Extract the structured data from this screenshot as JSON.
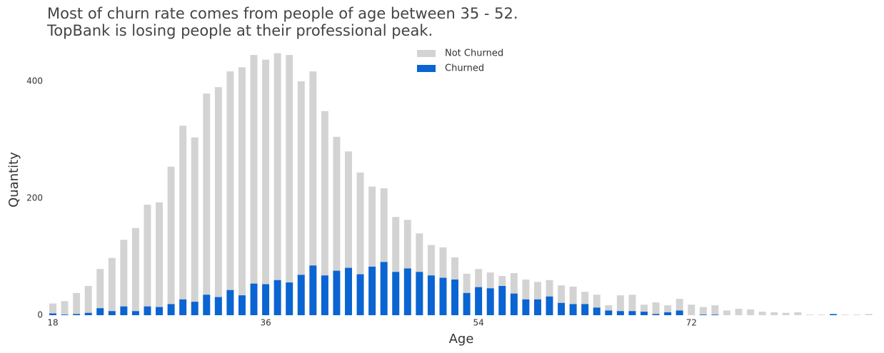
{
  "chart_data": {
    "type": "bar",
    "title": "Most of churn rate comes from people of age between 35 - 52.\nTopBank is losing people at their professional peak.",
    "x_label": "Age",
    "y_label": "Quantity",
    "categories": [
      "18",
      null,
      null,
      null,
      null,
      null,
      null,
      null,
      null,
      null,
      null,
      null,
      null,
      null,
      null,
      null,
      null,
      null,
      "36",
      null,
      null,
      null,
      null,
      null,
      null,
      null,
      null,
      null,
      null,
      null,
      null,
      null,
      null,
      null,
      null,
      null,
      "54",
      null,
      null,
      null,
      null,
      null,
      null,
      null,
      null,
      null,
      null,
      null,
      null,
      null,
      null,
      null,
      null,
      null,
      "72",
      null,
      null,
      null,
      null,
      null,
      null,
      null,
      null,
      null,
      null,
      null,
      null,
      null,
      null,
      null
    ],
    "series": [
      {
        "name": "Not Churned",
        "color": "#d3d3d3",
        "values": [
          20,
          24,
          38,
          50,
          79,
          98,
          129,
          149,
          189,
          193,
          254,
          324,
          304,
          379,
          390,
          417,
          424,
          445,
          437,
          448,
          445,
          400,
          417,
          349,
          305,
          280,
          244,
          220,
          217,
          168,
          163,
          140,
          120,
          116,
          99,
          71,
          79,
          73,
          67,
          72,
          61,
          57,
          60,
          51,
          49,
          40,
          35,
          17,
          34,
          35,
          18,
          22,
          17,
          28,
          18,
          14,
          17,
          8,
          11,
          10,
          6,
          5,
          4,
          5,
          1,
          1,
          1,
          1,
          1,
          2
        ]
      },
      {
        "name": "Churned",
        "color": "#0a64d2",
        "values": [
          3,
          1,
          2,
          4,
          12,
          7,
          15,
          7,
          15,
          14,
          19,
          27,
          23,
          35,
          31,
          43,
          34,
          54,
          53,
          60,
          56,
          69,
          85,
          68,
          76,
          81,
          70,
          83,
          91,
          74,
          80,
          74,
          68,
          64,
          61,
          38,
          48,
          46,
          50,
          37,
          27,
          27,
          32,
          21,
          19,
          19,
          13,
          8,
          7,
          7,
          6,
          2,
          5,
          8,
          0,
          1,
          1,
          0,
          0,
          0,
          0,
          0,
          0,
          0,
          0,
          0,
          2,
          0,
          0,
          0
        ]
      }
    ],
    "ylim": [
      0,
      460
    ],
    "yticks": [
      0,
      200,
      400
    ],
    "grid": false,
    "legend": "upper center"
  }
}
